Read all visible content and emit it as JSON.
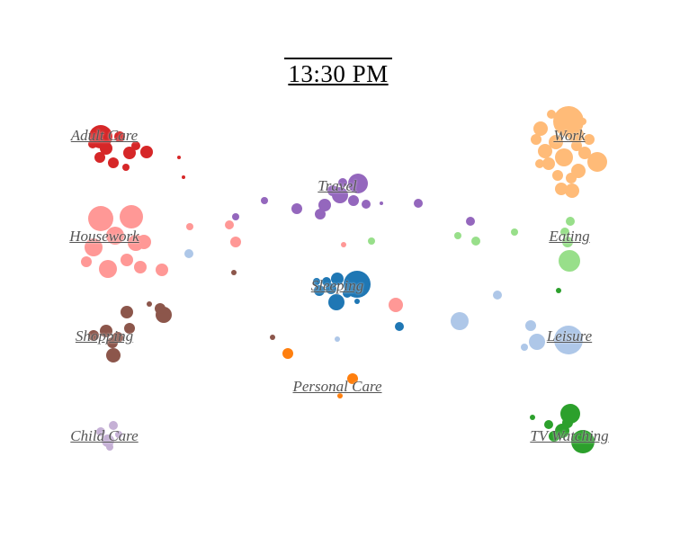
{
  "clock": {
    "time_label": "13:30 PM"
  },
  "colors": {
    "Adult Care": "#d62728",
    "Work": "#ffbb78",
    "Travel": "#9467bd",
    "Housework": "#ff9896",
    "Eating": "#98df8a",
    "Sleeping": "#1f77b4",
    "Shopping": "#8c564b",
    "Leisure": "#aec7e8",
    "Personal Care": "#ff7f0e",
    "Child Care": "#c5b0d5",
    "TV Watching": "#2ca02c"
  },
  "chart_data": {
    "type": "scatter",
    "title": "13:30 PM",
    "categories": [
      {
        "name": "Adult Care",
        "label": "Adult Care",
        "count": 12
      },
      {
        "name": "Work",
        "label": "Work",
        "count": 20
      },
      {
        "name": "Travel",
        "label": "Travel",
        "count": 14
      },
      {
        "name": "Housework",
        "label": "Housework",
        "count": 16
      },
      {
        "name": "Eating",
        "label": "Eating",
        "count": 8
      },
      {
        "name": "Sleeping",
        "label": "Sleeping",
        "count": 10
      },
      {
        "name": "Shopping",
        "label": "Shopping",
        "count": 12
      },
      {
        "name": "Leisure",
        "label": "Leisure",
        "count": 8
      },
      {
        "name": "Personal Care",
        "label": "Personal Care",
        "count": 3
      },
      {
        "name": "Child Care",
        "label": "Child Care",
        "count": 5
      },
      {
        "name": "TV Watching",
        "label": "TV Watching",
        "count": 8
      }
    ],
    "xlabel": "",
    "ylabel": ""
  }
}
